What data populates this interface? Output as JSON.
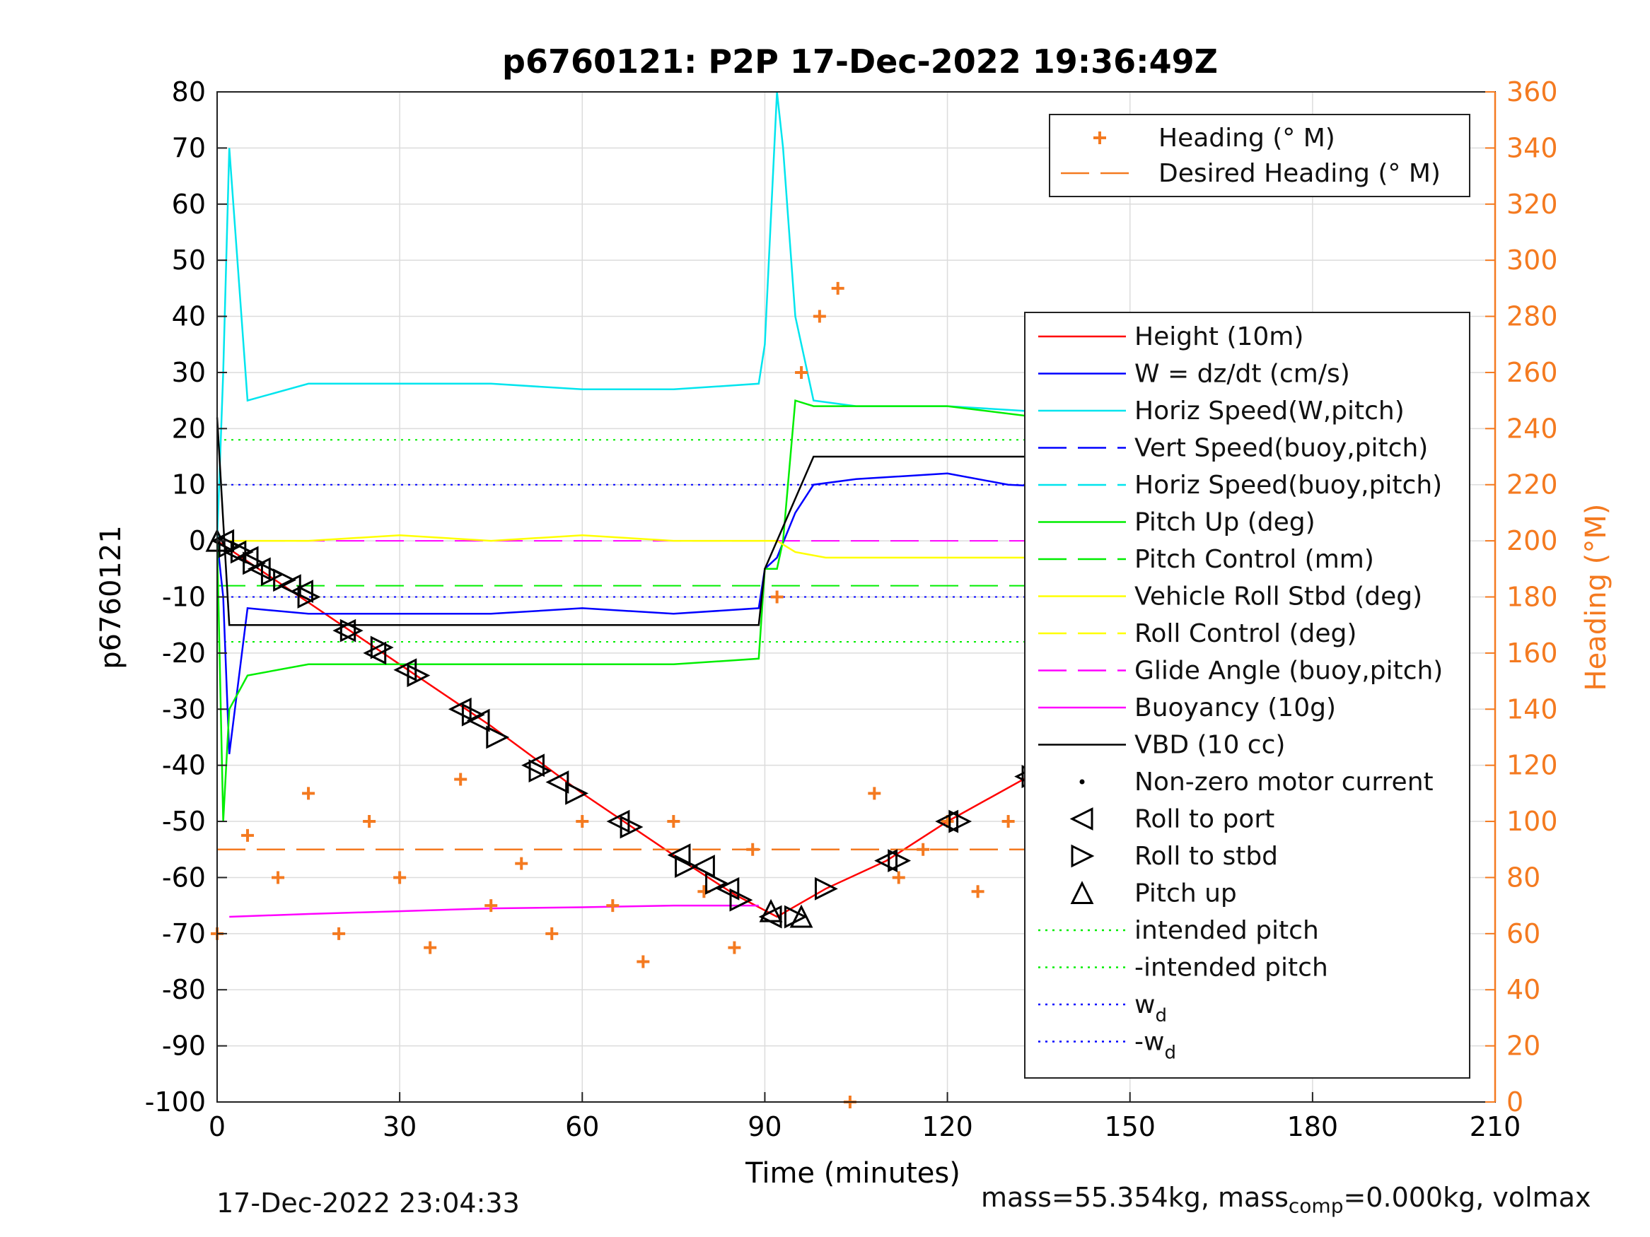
{
  "chart_data": {
    "type": "line",
    "title": "p6760121: P2P 17-Dec-2022 19:36:49Z",
    "xlabel": "Time (minutes)",
    "ylabel": "p6760121",
    "ylabel_right": "Heading (°M)",
    "xlim": [
      0,
      210
    ],
    "ylim": [
      -100,
      80
    ],
    "ylim_right": [
      0,
      360
    ],
    "xticks": [
      "0",
      "30",
      "60",
      "90",
      "120",
      "150",
      "180",
      "210"
    ],
    "yticks": [
      "80",
      "70",
      "60",
      "50",
      "40",
      "30",
      "20",
      "10",
      "0",
      "-10",
      "-20",
      "-30",
      "-40",
      "-50",
      "-60",
      "-70",
      "-80",
      "-90",
      "-100"
    ],
    "yticks_right": [
      "360",
      "340",
      "320",
      "300",
      "280",
      "260",
      "240",
      "220",
      "200",
      "180",
      "160",
      "140",
      "120",
      "100",
      "80",
      "60",
      "40",
      "20",
      "0"
    ],
    "grid": true,
    "heading_legend": [
      {
        "label": "Heading (° M)",
        "color": "#f47a20",
        "style": "plus"
      },
      {
        "label": "Desired Heading (° M)",
        "color": "#f47a20",
        "style": "dash"
      }
    ],
    "main_legend": [
      {
        "label": "Height (10m)",
        "color": "#ff0000",
        "style": "solid"
      },
      {
        "label": "W = dz/dt (cm/s)",
        "color": "#0000ff",
        "style": "solid"
      },
      {
        "label": "Horiz Speed(W,pitch)",
        "color": "#00e5ee",
        "style": "solid"
      },
      {
        "label": "Vert Speed(buoy,pitch)",
        "color": "#0000ff",
        "style": "dash"
      },
      {
        "label": "Horiz Speed(buoy,pitch)",
        "color": "#00e5ee",
        "style": "dash"
      },
      {
        "label": "Pitch Up (deg)",
        "color": "#00ee00",
        "style": "solid"
      },
      {
        "label": "Pitch Control (mm)",
        "color": "#00ee00",
        "style": "dash"
      },
      {
        "label": "Vehicle Roll Stbd (deg)",
        "color": "#ffff00",
        "style": "solid"
      },
      {
        "label": "Roll Control (deg)",
        "color": "#ffff00",
        "style": "dash"
      },
      {
        "label": "Glide Angle (buoy,pitch)",
        "color": "#ff00ff",
        "style": "dash"
      },
      {
        "label": "Buoyancy (10g)",
        "color": "#ff00ff",
        "style": "solid"
      },
      {
        "label": "VBD (10 cc)",
        "color": "#000000",
        "style": "solid"
      },
      {
        "label": "Non-zero motor current",
        "color": "#000000",
        "style": "dot"
      },
      {
        "label": "Roll to port",
        "color": "#000000",
        "style": "tri-left"
      },
      {
        "label": "Roll to stbd",
        "color": "#000000",
        "style": "tri-right"
      },
      {
        "label": "Pitch up",
        "color": "#000000",
        "style": "tri-up"
      },
      {
        "label": "intended pitch",
        "color": "#00ee00",
        "style": "dotted"
      },
      {
        "label": "-intended pitch",
        "color": "#00ee00",
        "style": "dotted"
      },
      {
        "label": "w",
        "sub": "d",
        "color": "#0000ff",
        "style": "dotted"
      },
      {
        "label": "-w",
        "sub": "d",
        "color": "#0000ff",
        "style": "dotted"
      }
    ],
    "series": [
      {
        "name": "Height (10m)",
        "color": "#ff0000",
        "x": [
          0,
          15,
          30,
          45,
          60,
          75,
          85,
          92,
          100,
          110,
          120,
          135,
          150,
          165,
          180,
          190,
          198
        ],
        "y": [
          0,
          -11,
          -22,
          -33,
          -45,
          -56,
          -63,
          -67,
          -62,
          -57,
          -50,
          -41,
          -31,
          -22,
          -13,
          -6,
          -1
        ]
      },
      {
        "name": "W = dz/dt (cm/s)",
        "color": "#0000ff",
        "x": [
          0,
          1,
          2,
          5,
          15,
          30,
          45,
          60,
          75,
          89,
          90,
          92,
          95,
          98,
          105,
          120,
          130,
          150,
          170,
          190,
          198
        ],
        "y": [
          0,
          -10,
          -38,
          -12,
          -13,
          -13,
          -13,
          -12,
          -13,
          -12,
          -5,
          -3,
          5,
          10,
          11,
          12,
          10,
          9,
          9,
          10,
          10
        ]
      },
      {
        "name": "Horiz Speed(W,pitch)",
        "color": "#00e5ee",
        "x": [
          0,
          1,
          2,
          5,
          15,
          30,
          45,
          60,
          75,
          89,
          90,
          92,
          93,
          95,
          98,
          105,
          120,
          135,
          150,
          170,
          198
        ],
        "y": [
          0,
          30,
          70,
          25,
          28,
          28,
          28,
          27,
          27,
          28,
          35,
          80,
          70,
          40,
          25,
          24,
          24,
          23,
          22,
          22,
          22
        ]
      },
      {
        "name": "Pitch Up (deg)",
        "color": "#00ee00",
        "x": [
          0,
          1,
          2,
          5,
          15,
          30,
          45,
          60,
          75,
          89,
          90,
          92,
          93,
          95,
          98,
          105,
          120,
          135,
          150,
          170,
          198
        ],
        "y": [
          0,
          -50,
          -30,
          -24,
          -22,
          -22,
          -22,
          -22,
          -22,
          -21,
          -5,
          -5,
          0,
          25,
          24,
          24,
          24,
          22,
          22,
          22,
          24
        ]
      },
      {
        "name": "Vehicle Roll Stbd (deg)",
        "color": "#ffff00",
        "x": [
          2,
          15,
          30,
          45,
          60,
          75,
          89,
          92,
          95,
          100,
          120,
          140,
          160,
          180,
          198
        ],
        "y": [
          0,
          0,
          1,
          0,
          1,
          0,
          0,
          0,
          -2,
          -3,
          -3,
          -3,
          -3,
          -3,
          -2
        ]
      },
      {
        "name": "Buoyancy (10g)",
        "color": "#ff00ff",
        "x": [
          2,
          15,
          30,
          45,
          60,
          75,
          89
        ],
        "y": [
          -67,
          -66.5,
          -66,
          -65.5,
          -65.3,
          -65,
          -65
        ]
      },
      {
        "name": "VBD (10 cc)",
        "color": "#000000",
        "x": [
          0,
          2,
          15,
          30,
          60,
          89,
          90,
          98,
          105,
          120,
          150,
          170,
          190,
          198
        ],
        "y": [
          22,
          -15,
          -15,
          -15,
          -15,
          -15,
          -5,
          15,
          15,
          15,
          15,
          15,
          16,
          20
        ]
      },
      {
        "name": "Heading (° M)",
        "color": "#f47a20",
        "axis": "right",
        "x": [
          0,
          5,
          10,
          15,
          20,
          25,
          30,
          35,
          40,
          45,
          50,
          55,
          60,
          65,
          70,
          75,
          80,
          85,
          88,
          92,
          96,
          99,
          102,
          104,
          108,
          112,
          116,
          120,
          125,
          130,
          134,
          140,
          145,
          150,
          160,
          170,
          180,
          190,
          198
        ],
        "y": [
          60,
          95,
          80,
          110,
          60,
          100,
          80,
          55,
          115,
          70,
          85,
          60,
          100,
          70,
          50,
          100,
          75,
          55,
          90,
          180,
          260,
          280,
          290,
          0,
          110,
          80,
          90,
          100,
          75,
          100,
          55,
          110,
          85,
          80,
          95,
          90,
          100,
          95,
          85
        ]
      },
      {
        "name": "Desired Heading (° M)",
        "color": "#f47a20",
        "axis": "right",
        "x": [
          0,
          198
        ],
        "y": [
          90,
          90
        ]
      }
    ],
    "reference_lines": [
      {
        "name": "intended pitch",
        "y": 18,
        "color": "#00ee00"
      },
      {
        "name": "-intended pitch",
        "y": -18,
        "color": "#00ee00"
      },
      {
        "name": "w_d",
        "y": 10,
        "color": "#0000ff"
      },
      {
        "name": "-w_d",
        "y": -10,
        "color": "#0000ff"
      },
      {
        "name": "Pitch Control (mm)",
        "y": -8,
        "color": "#00ee00"
      },
      {
        "name": "Glide Angle (buoy,pitch)",
        "y": 0,
        "color": "#ff00ff"
      }
    ],
    "markers": {
      "roll_to_port": [
        [
          1,
          0
        ],
        [
          3,
          -2
        ],
        [
          5,
          -3
        ],
        [
          7,
          -5
        ],
        [
          12,
          -8
        ],
        [
          14,
          -9
        ],
        [
          21,
          -16
        ],
        [
          26,
          -20
        ],
        [
          31,
          -23
        ],
        [
          40,
          -30
        ],
        [
          43,
          -32
        ],
        [
          52,
          -40
        ],
        [
          56,
          -43
        ],
        [
          66,
          -50
        ],
        [
          76,
          -56
        ],
        [
          80,
          -58
        ],
        [
          84,
          -62
        ],
        [
          91,
          -67
        ],
        [
          110,
          -57
        ],
        [
          120,
          -50
        ],
        [
          133,
          -42
        ],
        [
          150,
          -31
        ],
        [
          158,
          -26
        ],
        [
          165,
          -21
        ],
        [
          173,
          -16
        ],
        [
          177,
          -13
        ],
        [
          185,
          -8
        ],
        [
          188,
          -6
        ]
      ],
      "roll_to_stbd": [
        [
          2,
          -1
        ],
        [
          4,
          -2
        ],
        [
          6,
          -4
        ],
        [
          9,
          -6
        ],
        [
          11,
          -7
        ],
        [
          15,
          -10
        ],
        [
          22,
          -16
        ],
        [
          27,
          -19
        ],
        [
          33,
          -24
        ],
        [
          42,
          -31
        ],
        [
          46,
          -35
        ],
        [
          53,
          -41
        ],
        [
          59,
          -45
        ],
        [
          68,
          -51
        ],
        [
          77,
          -58
        ],
        [
          82,
          -61
        ],
        [
          86,
          -64
        ],
        [
          95,
          -67
        ],
        [
          100,
          -62
        ],
        [
          112,
          -57
        ],
        [
          122,
          -50
        ],
        [
          134,
          -42
        ],
        [
          152,
          -30
        ],
        [
          160,
          -25
        ],
        [
          167,
          -20
        ],
        [
          175,
          -15
        ],
        [
          180,
          -11
        ],
        [
          186,
          -7
        ],
        [
          189,
          -5
        ],
        [
          192,
          -3
        ]
      ],
      "pitch_up": [
        [
          0,
          0
        ],
        [
          91,
          -66
        ],
        [
          96,
          -67
        ],
        [
          198,
          -1
        ]
      ]
    }
  },
  "footer": {
    "timestamp": "17-Dec-2022 23:04:33",
    "mass_text": "mass=55.354kg, mass",
    "mass_sub": "comp",
    "mass_tail": "=0.000kg, volmax"
  }
}
